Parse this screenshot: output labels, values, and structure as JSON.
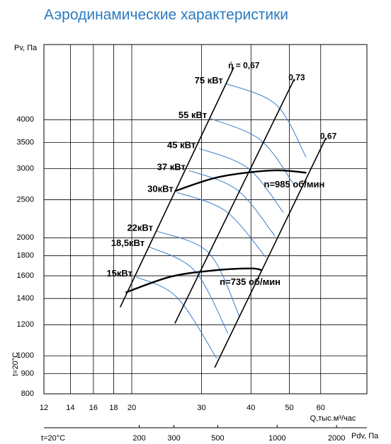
{
  "chart_data": {
    "type": "line",
    "title": "Аэродинамические характеристики",
    "ylabel": "Pv, Па",
    "xlabel": "Q,тыс.м³/час",
    "x2label": "Pdv, Па",
    "side_note": "t=20°C",
    "bottom_note": "t=20°C",
    "log_scale": true,
    "grid": true,
    "xlim": [
      12,
      78.5
    ],
    "xticks": [
      12,
      14,
      16,
      18,
      20,
      30,
      40,
      50,
      60
    ],
    "ylim": [
      800,
      6220
    ],
    "yticks": [
      800,
      900,
      1000,
      1200,
      1400,
      1600,
      1800,
      2000,
      2500,
      3000,
      3500,
      4000
    ],
    "x2lim": [
      65.8,
      2850
    ],
    "x2ticks": [
      200,
      300,
      500,
      1000,
      2000
    ],
    "series": [
      {
        "name": "75 кВт",
        "color": "#3a7dc9",
        "line_width": 1,
        "x": [
          34.7,
          46.3,
          55.1
        ],
        "values": [
          4940,
          4370,
          3210
        ]
      },
      {
        "name": "55 кВт",
        "color": "#3a7dc9",
        "line_width": 1,
        "x": [
          31.6,
          42.3,
          51.5
        ],
        "values": [
          4030,
          3550,
          2720
        ]
      },
      {
        "name": "45 кВт",
        "color": "#3a7dc9",
        "line_width": 1,
        "x": [
          29.6,
          39.3,
          48.3
        ],
        "values": [
          3380,
          3010,
          2320
        ]
      },
      {
        "name": "37 кВт",
        "color": "#3a7dc9",
        "line_width": 1,
        "x": [
          27.9,
          36.9,
          46.0
        ],
        "values": [
          2970,
          2650,
          2020
        ]
      },
      {
        "name": "30кВт",
        "color": "#3a7dc9",
        "line_width": 1,
        "x": [
          26.0,
          34.5,
          43.7
        ],
        "values": [
          2610,
          2340,
          1780
        ]
      },
      {
        "name": "22кВт",
        "color": "#3a7dc9",
        "line_width": 1,
        "x": [
          23.1,
          31.3,
          37.4
        ],
        "values": [
          2080,
          1830,
          1260
        ]
      },
      {
        "name": "18,5кВт",
        "color": "#3a7dc9",
        "line_width": 1,
        "x": [
          22.0,
          28.8,
          35.0
        ],
        "values": [
          1900,
          1650,
          1140
        ]
      },
      {
        "name": "15кВт",
        "color": "#3a7dc9",
        "line_width": 1,
        "x": [
          20.5,
          26.0,
          32.8
        ],
        "values": [
          1590,
          1410,
          984
        ]
      },
      {
        "name": "ή = 0,67",
        "color": "#000000",
        "line_width": 1.6,
        "x": [
          18.7,
          36.2
        ],
        "values": [
          1330,
          5440
        ]
      },
      {
        "name": "0,73",
        "color": "#000000",
        "line_width": 1.6,
        "x": [
          25.7,
          51.4
        ],
        "values": [
          1210,
          5070
        ]
      },
      {
        "name": "0,67",
        "color": "#000000",
        "line_width": 1.6,
        "x": [
          32.4,
          61.8
        ],
        "values": [
          933,
          3590
        ]
      },
      {
        "name": "n=985 об/мин",
        "color": "#000000",
        "line_width": 2.4,
        "x": [
          25.7,
          33.3,
          45.4,
          55.2
        ],
        "values": [
          2630,
          2860,
          2970,
          2930
        ]
      },
      {
        "name": "n=735 об/мин",
        "color": "#000000",
        "line_width": 2.4,
        "x": [
          19.3,
          25.0,
          32.0,
          40.1,
          42.7
        ],
        "values": [
          1450,
          1590,
          1650,
          1670,
          1650
        ]
      }
    ]
  }
}
